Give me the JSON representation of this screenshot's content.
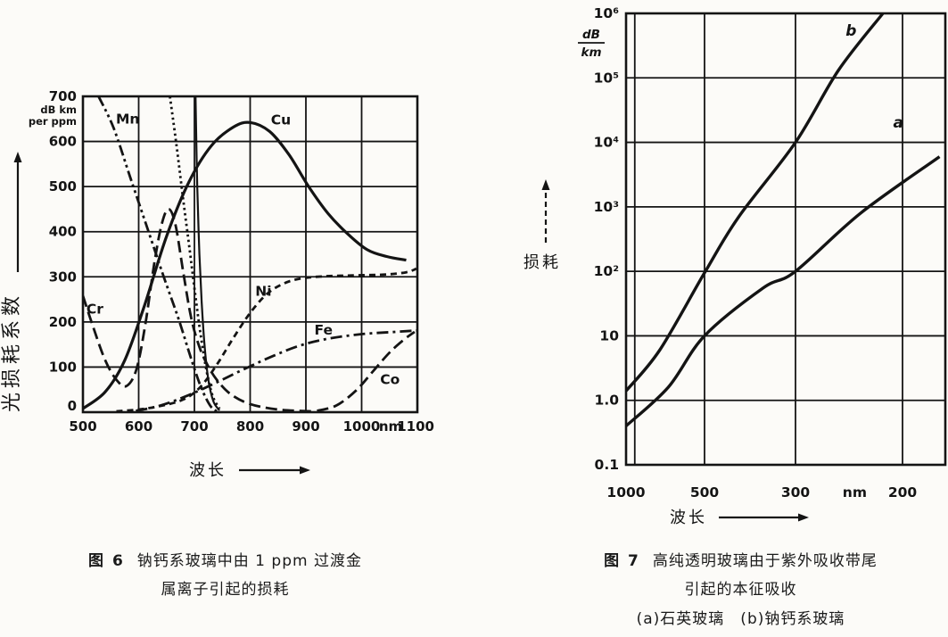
{
  "page": {
    "background": "#fcfbf8",
    "ink": "#141414",
    "description": "扫描书页：两张玻璃光损耗图"
  },
  "fig6": {
    "caption": {
      "fig_label": "图 6",
      "line1": "钠钙系玻璃中由 1 ppm 过渡金",
      "line2": "属离子引起的损耗"
    }
  },
  "fig7": {
    "caption": {
      "fig_label": "图 7",
      "line1": "高纯透明玻璃由于紫外吸收带尾",
      "line2": "引起的本征吸收",
      "line3": "(a)石英玻璃　(b)钠钙系玻璃"
    }
  },
  "chart_data": [
    {
      "id": "fig6",
      "type": "line",
      "title": "钠钙系玻璃中由 1 ppm 过渡金属离子引起的损耗",
      "xlabel": "波长",
      "ylabel": "光损耗系数",
      "x_unit": "nm",
      "y_unit": "dB km per ppm",
      "y_unit_lines": [
        "dB km",
        "per ppm"
      ],
      "xlim": [
        500,
        1100
      ],
      "ylim": [
        0,
        700
      ],
      "grid": true,
      "x_grid": [
        500,
        600,
        700,
        800,
        900,
        1000,
        1100
      ],
      "y_ticks": [
        700,
        600,
        500,
        400,
        300,
        200,
        100,
        0
      ],
      "x_tick_labels": [
        {
          "at": 500,
          "text": "500"
        },
        {
          "at": 600,
          "text": "600"
        },
        {
          "at": 700,
          "text": "700"
        },
        {
          "at": 800,
          "text": "800"
        },
        {
          "at": 900,
          "text": "900"
        },
        {
          "at": 1000,
          "text": "1000"
        },
        {
          "at": 1052,
          "text": "nm"
        },
        {
          "at": 1097,
          "text": "1100"
        }
      ],
      "series": [
        {
          "name": "Mn",
          "style": "dash-dot-dot",
          "label_at": [
            572,
            650
          ],
          "points": [
            [
              528,
              700
            ],
            [
              555,
              630
            ],
            [
              585,
              520
            ],
            [
              615,
              410
            ],
            [
              645,
              300
            ],
            [
              672,
              205
            ],
            [
              695,
              115
            ],
            [
              712,
              55
            ],
            [
              728,
              15
            ],
            [
              740,
              2
            ]
          ]
        },
        {
          "name": "Cu",
          "style": "solid",
          "label_at": [
            850,
            648
          ],
          "points": [
            [
              500,
              8
            ],
            [
              540,
              45
            ],
            [
              575,
              115
            ],
            [
              610,
              235
            ],
            [
              650,
              390
            ],
            [
              690,
              510
            ],
            [
              730,
              590
            ],
            [
              770,
              632
            ],
            [
              800,
              642
            ],
            [
              835,
              622
            ],
            [
              870,
              570
            ],
            [
              905,
              500
            ],
            [
              940,
              440
            ],
            [
              975,
              395
            ],
            [
              1010,
              360
            ],
            [
              1045,
              345
            ],
            [
              1080,
              337
            ]
          ]
        },
        {
          "name": "Cr",
          "style": "long-dash",
          "label_at": [
            519,
            228
          ],
          "points": [
            [
              500,
              258
            ],
            [
              518,
              190
            ],
            [
              540,
              115
            ],
            [
              560,
              72
            ],
            [
              578,
              58
            ],
            [
              596,
              95
            ],
            [
              612,
              195
            ],
            [
              628,
              330
            ],
            [
              642,
              420
            ],
            [
              654,
              450
            ],
            [
              666,
              415
            ],
            [
              680,
              310
            ],
            [
              694,
              210
            ],
            [
              708,
              148
            ],
            [
              722,
              108
            ],
            [
              740,
              72
            ],
            [
              765,
              40
            ],
            [
              800,
              18
            ],
            [
              850,
              6
            ],
            [
              910,
              2
            ]
          ]
        },
        {
          "name": "Ni",
          "style": "dash",
          "label_at": [
            822,
            268
          ],
          "points": [
            [
              560,
              2
            ],
            [
              600,
              6
            ],
            [
              640,
              14
            ],
            [
              680,
              28
            ],
            [
              710,
              55
            ],
            [
              740,
              105
            ],
            [
              770,
              165
            ],
            [
              800,
              220
            ],
            [
              830,
              262
            ],
            [
              860,
              285
            ],
            [
              890,
              296
            ],
            [
              930,
              301
            ],
            [
              980,
              303
            ],
            [
              1040,
              305
            ],
            [
              1080,
              310
            ],
            [
              1098,
              318
            ]
          ]
        },
        {
          "name": "Fe",
          "style": "dash-dot",
          "label_at": [
            928,
            182
          ],
          "points": [
            [
              595,
              3
            ],
            [
              640,
              15
            ],
            [
              690,
              38
            ],
            [
              740,
              66
            ],
            [
              790,
              96
            ],
            [
              840,
              124
            ],
            [
              890,
              148
            ],
            [
              940,
              163
            ],
            [
              1000,
              173
            ],
            [
              1060,
              178
            ],
            [
              1098,
              181
            ]
          ]
        },
        {
          "name": "Co",
          "style": "long-dash",
          "label_at": [
            1046,
            72
          ],
          "points": [
            [
              920,
              3
            ],
            [
              955,
              15
            ],
            [
              990,
              48
            ],
            [
              1020,
              90
            ],
            [
              1050,
              132
            ],
            [
              1075,
              160
            ],
            [
              1095,
              178
            ]
          ]
        },
        {
          "name": "",
          "style": "dotted",
          "label_at": null,
          "points": [
            [
              656,
              700
            ],
            [
              668,
              590
            ],
            [
              680,
              470
            ],
            [
              692,
              355
            ],
            [
              702,
              255
            ],
            [
              712,
              165
            ],
            [
              722,
              90
            ],
            [
              733,
              35
            ],
            [
              745,
              8
            ]
          ]
        },
        {
          "name": "",
          "style": "solid-thin",
          "label_at": null,
          "points": [
            [
              702,
              700
            ],
            [
              704,
              560
            ],
            [
              706,
              460
            ],
            [
              709,
              350
            ],
            [
              713,
              245
            ],
            [
              718,
              150
            ],
            [
              725,
              72
            ],
            [
              734,
              24
            ],
            [
              745,
              4
            ]
          ]
        }
      ]
    },
    {
      "id": "fig7",
      "type": "line",
      "title": "高纯透明玻璃由于紫外吸收带尾引起的本征吸收",
      "xlabel": "波长",
      "ylabel": "损耗",
      "y_unit": "dB/km",
      "y_unit_fraction": [
        "dB",
        "km"
      ],
      "x_scale": "reversed wavelength (linear in 1/λ)",
      "y_scale": "log",
      "xlim": [
        1000,
        175
      ],
      "ylim": [
        0.1,
        1000000
      ],
      "grid": true,
      "x_grid": [
        1000,
        900,
        500,
        300,
        200
      ],
      "x_tick_labels": [
        {
          "at": 1000,
          "text": "1000"
        },
        {
          "at": 500,
          "text": "500"
        },
        {
          "at": 300,
          "text": "300"
        },
        {
          "at": 235,
          "text": "nm"
        },
        {
          "at": 200,
          "text": "200"
        }
      ],
      "y_tick_labels": [
        {
          "at": 1000000,
          "text": "10⁶"
        },
        {
          "at": 100000,
          "text": "10⁵"
        },
        {
          "at": 10000,
          "text": "10⁴"
        },
        {
          "at": 1000,
          "text": "10³"
        },
        {
          "at": 100,
          "text": "10²"
        },
        {
          "at": 10,
          "text": "10"
        },
        {
          "at": 1,
          "text": "1.0"
        },
        {
          "at": 0.1,
          "text": "0.1"
        }
      ],
      "series": [
        {
          "name": "a",
          "legend": "石英玻璃",
          "style": "solid",
          "label_at": [
            206,
            17000
          ],
          "points": [
            [
              1000,
              0.4
            ],
            [
              650,
              1.6
            ],
            [
              500,
              10
            ],
            [
              350,
              55
            ],
            [
              300,
              100
            ],
            [
              230,
              800
            ],
            [
              178,
              6000
            ]
          ]
        },
        {
          "name": "b",
          "legend": "钠钙系玻璃",
          "style": "solid",
          "label_at": [
            243,
            450000
          ],
          "points": [
            [
              1000,
              1.4
            ],
            [
              700,
              6
            ],
            [
              500,
              95
            ],
            [
              400,
              700
            ],
            [
              300,
              10000
            ],
            [
              250,
              130000
            ],
            [
              213,
              1000000
            ]
          ]
        }
      ]
    }
  ]
}
